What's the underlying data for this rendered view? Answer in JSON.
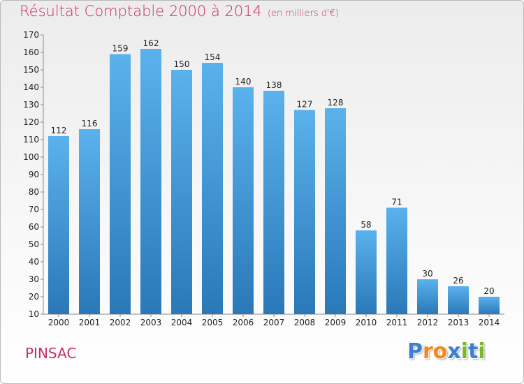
{
  "title": "Résultat Comptable 2000 à 2014",
  "subtitle": "(en milliers d'€)",
  "town": "PINSAC",
  "logo": {
    "text": "Proxiti",
    "letters": [
      "P",
      "r",
      "o",
      "x",
      "i",
      "t",
      "i"
    ]
  },
  "colors": {
    "title": "#cc2a6b",
    "bar_top": "#5ab2ec",
    "bar_bottom": "#2a78b8",
    "logo": [
      "#3a7fd0",
      "#f08a1c",
      "#f08a1c",
      "#3a7fd0",
      "#78b82a",
      "#3a7fd0",
      "#78b82a"
    ]
  },
  "chart_data": {
    "type": "bar",
    "categories": [
      "2000",
      "2001",
      "2002",
      "2003",
      "2004",
      "2005",
      "2006",
      "2007",
      "2008",
      "2009",
      "2010",
      "2011",
      "2012",
      "2013",
      "2014"
    ],
    "values": [
      112,
      116,
      159,
      162,
      150,
      154,
      140,
      138,
      127,
      128,
      58,
      71,
      30,
      26,
      20
    ],
    "ylim": [
      10,
      170
    ],
    "yticks": [
      10,
      20,
      30,
      40,
      50,
      60,
      70,
      80,
      90,
      100,
      110,
      120,
      130,
      140,
      150,
      160,
      170
    ],
    "grid": false,
    "xlabel": "",
    "ylabel": ""
  }
}
